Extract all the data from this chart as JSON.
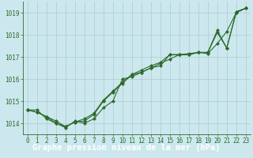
{
  "title": "Graphe pression niveau de la mer (hPa)",
  "bg_color": "#cce8ee",
  "grid_color": "#aacccc",
  "line_color": "#2d6a2d",
  "marker_color": "#2d6a2d",
  "title_bg_color": "#3a7a3a",
  "title_text_color": "#ffffff",
  "xlim": [
    -0.5,
    23.5
  ],
  "ylim": [
    1013.5,
    1019.5
  ],
  "yticks": [
    1014,
    1015,
    1016,
    1017,
    1018,
    1019
  ],
  "xticks": [
    0,
    1,
    2,
    3,
    4,
    5,
    6,
    7,
    8,
    9,
    10,
    11,
    12,
    13,
    14,
    15,
    16,
    17,
    18,
    19,
    20,
    21,
    22,
    23
  ],
  "series1": {
    "x": [
      0,
      1,
      2,
      3,
      4,
      5,
      6,
      7,
      8,
      9,
      10,
      11,
      12,
      13,
      14,
      15,
      16,
      17,
      18,
      19,
      20,
      21,
      22,
      23
    ],
    "y": [
      1014.6,
      1014.6,
      1014.2,
      1014.0,
      1013.8,
      1014.1,
      1014.0,
      1014.2,
      1014.7,
      1015.0,
      1016.0,
      1016.1,
      1016.3,
      1016.5,
      1016.6,
      1017.1,
      1017.1,
      1017.1,
      1017.2,
      1017.2,
      1018.1,
      1017.4,
      1019.0,
      1019.2
    ]
  },
  "series2": {
    "x": [
      0,
      1,
      2,
      3,
      4,
      5,
      6,
      7,
      8,
      9,
      10,
      11,
      12,
      13,
      14,
      15,
      16,
      17,
      18,
      19,
      20,
      21,
      22,
      23
    ],
    "y": [
      1014.6,
      1014.5,
      1014.3,
      1014.1,
      1013.85,
      1014.05,
      1014.1,
      1014.4,
      1015.0,
      1015.4,
      1015.8,
      1016.2,
      1016.3,
      1016.5,
      1016.7,
      1016.9,
      1017.1,
      1017.1,
      1017.2,
      1017.15,
      1017.6,
      1018.15,
      1019.0,
      1019.2
    ]
  },
  "series3": {
    "x": [
      0,
      1,
      2,
      3,
      4,
      5,
      6,
      7,
      8,
      9,
      10,
      11,
      12,
      13,
      14,
      15,
      16,
      17,
      18,
      19,
      20,
      21,
      22,
      23
    ],
    "y": [
      1014.6,
      1014.5,
      1014.3,
      1014.0,
      1013.85,
      1014.05,
      1014.2,
      1014.45,
      1015.05,
      1015.45,
      1015.85,
      1016.2,
      1016.4,
      1016.6,
      1016.75,
      1017.1,
      1017.1,
      1017.15,
      1017.2,
      1017.2,
      1018.2,
      1017.4,
      1019.05,
      1019.2
    ]
  },
  "title_fontsize": 7.5,
  "tick_fontsize": 5.5
}
